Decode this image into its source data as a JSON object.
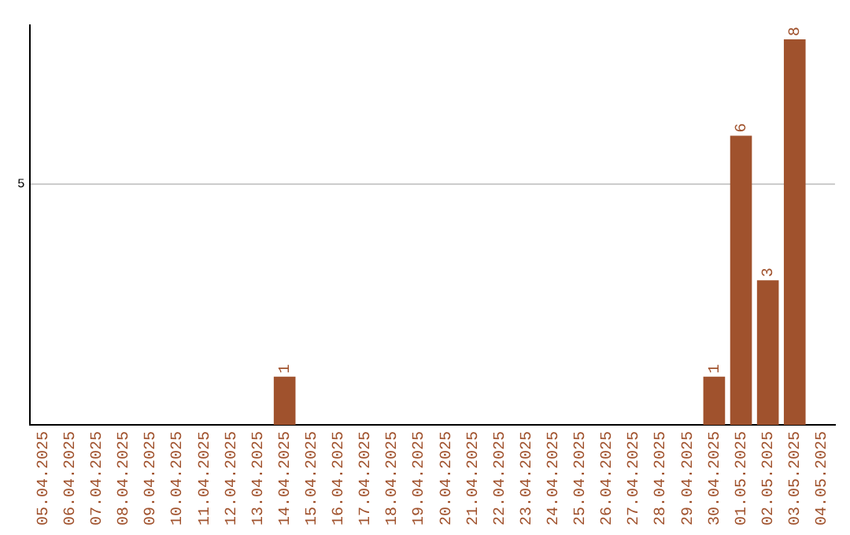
{
  "chart_data": {
    "type": "bar",
    "categories": [
      "05.04.2025",
      "06.04.2025",
      "07.04.2025",
      "08.04.2025",
      "09.04.2025",
      "10.04.2025",
      "11.04.2025",
      "12.04.2025",
      "13.04.2025",
      "14.04.2025",
      "15.04.2025",
      "16.04.2025",
      "17.04.2025",
      "18.04.2025",
      "19.04.2025",
      "20.04.2025",
      "21.04.2025",
      "22.04.2025",
      "23.04.2025",
      "24.04.2025",
      "25.04.2025",
      "26.04.2025",
      "27.04.2025",
      "28.04.2025",
      "29.04.2025",
      "30.04.2025",
      "01.05.2025",
      "02.05.2025",
      "03.05.2025",
      "04.05.2025"
    ],
    "values": [
      0,
      0,
      0,
      0,
      0,
      0,
      0,
      0,
      0,
      1,
      0,
      0,
      0,
      0,
      0,
      0,
      0,
      0,
      0,
      0,
      0,
      0,
      0,
      0,
      0,
      1,
      6,
      3,
      8,
      0
    ],
    "value_labels": [
      null,
      null,
      null,
      null,
      null,
      null,
      null,
      null,
      null,
      "1",
      null,
      null,
      null,
      null,
      null,
      null,
      null,
      null,
      null,
      null,
      null,
      null,
      null,
      null,
      null,
      "1",
      "6",
      "3",
      "8",
      null
    ],
    "color": "#a0522d",
    "ylim": [
      0,
      8.3
    ],
    "yticks": [
      5
    ],
    "grid": "y",
    "legend": false
  }
}
